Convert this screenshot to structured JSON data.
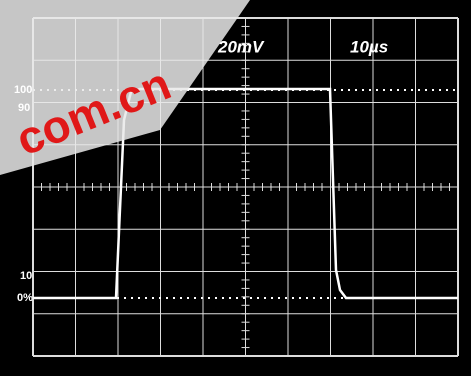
{
  "scope": {
    "volts_per_div": "20mV",
    "time_per_div": "10µs",
    "level_labels": [
      "100",
      "90",
      "10",
      "0%"
    ]
  },
  "watermark": "com.cn"
}
